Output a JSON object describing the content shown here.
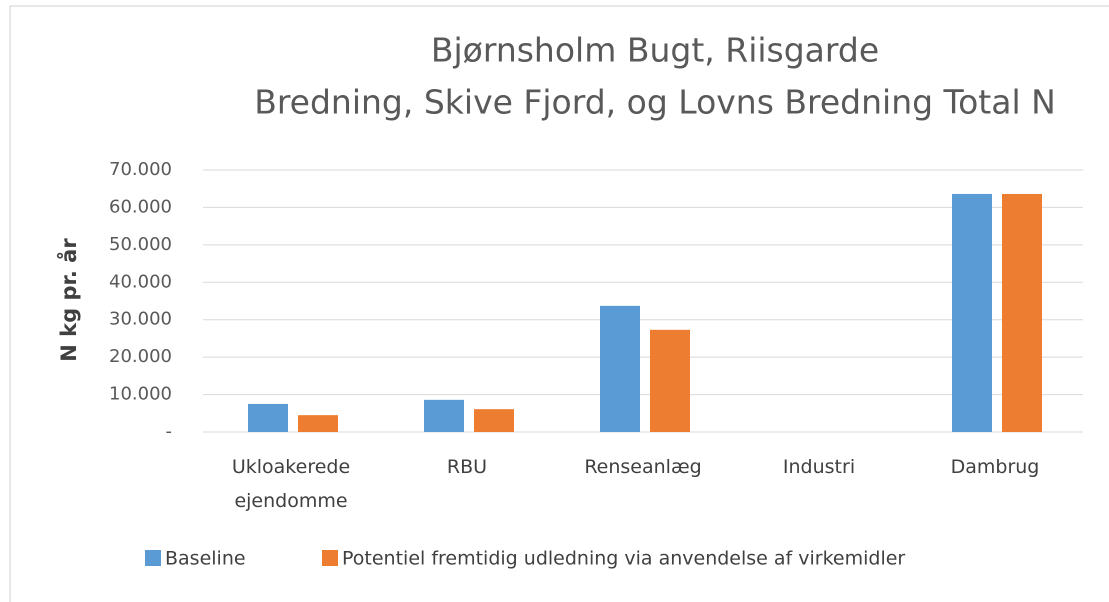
{
  "chart_data": {
    "type": "bar",
    "title": [
      "Bjørnsholm Bugt, Riisgarde",
      "Bredning, Skive Fjord, og Lovns Bredning Total N"
    ],
    "y_label": "N kg pr. år",
    "categories": [
      "Ukloakerede ejendomme",
      "RBU",
      "Renseanlæg",
      "Industri",
      "Dambrug"
    ],
    "series": [
      {
        "name": "Baseline",
        "color": "#5b9bd5",
        "values": [
          7500,
          8600,
          33700,
          0,
          63600
        ]
      },
      {
        "name": "Potentiel fremtidig udledning via anvendelse af virkemidler",
        "color": "#ed7d31",
        "values": [
          4500,
          6100,
          27300,
          0,
          63600
        ]
      }
    ],
    "ylim": [
      0,
      70000
    ],
    "yticks": [
      {
        "value": 0,
        "label": "-"
      },
      {
        "value": 10000,
        "label": "10.000"
      },
      {
        "value": 20000,
        "label": "20.000"
      },
      {
        "value": 30000,
        "label": "30.000"
      },
      {
        "value": 40000,
        "label": "40.000"
      },
      {
        "value": 50000,
        "label": "50.000"
      },
      {
        "value": 60000,
        "label": "60.000"
      },
      {
        "value": 70000,
        "label": "70.000"
      }
    ],
    "grid": true,
    "legend": "bottom"
  }
}
